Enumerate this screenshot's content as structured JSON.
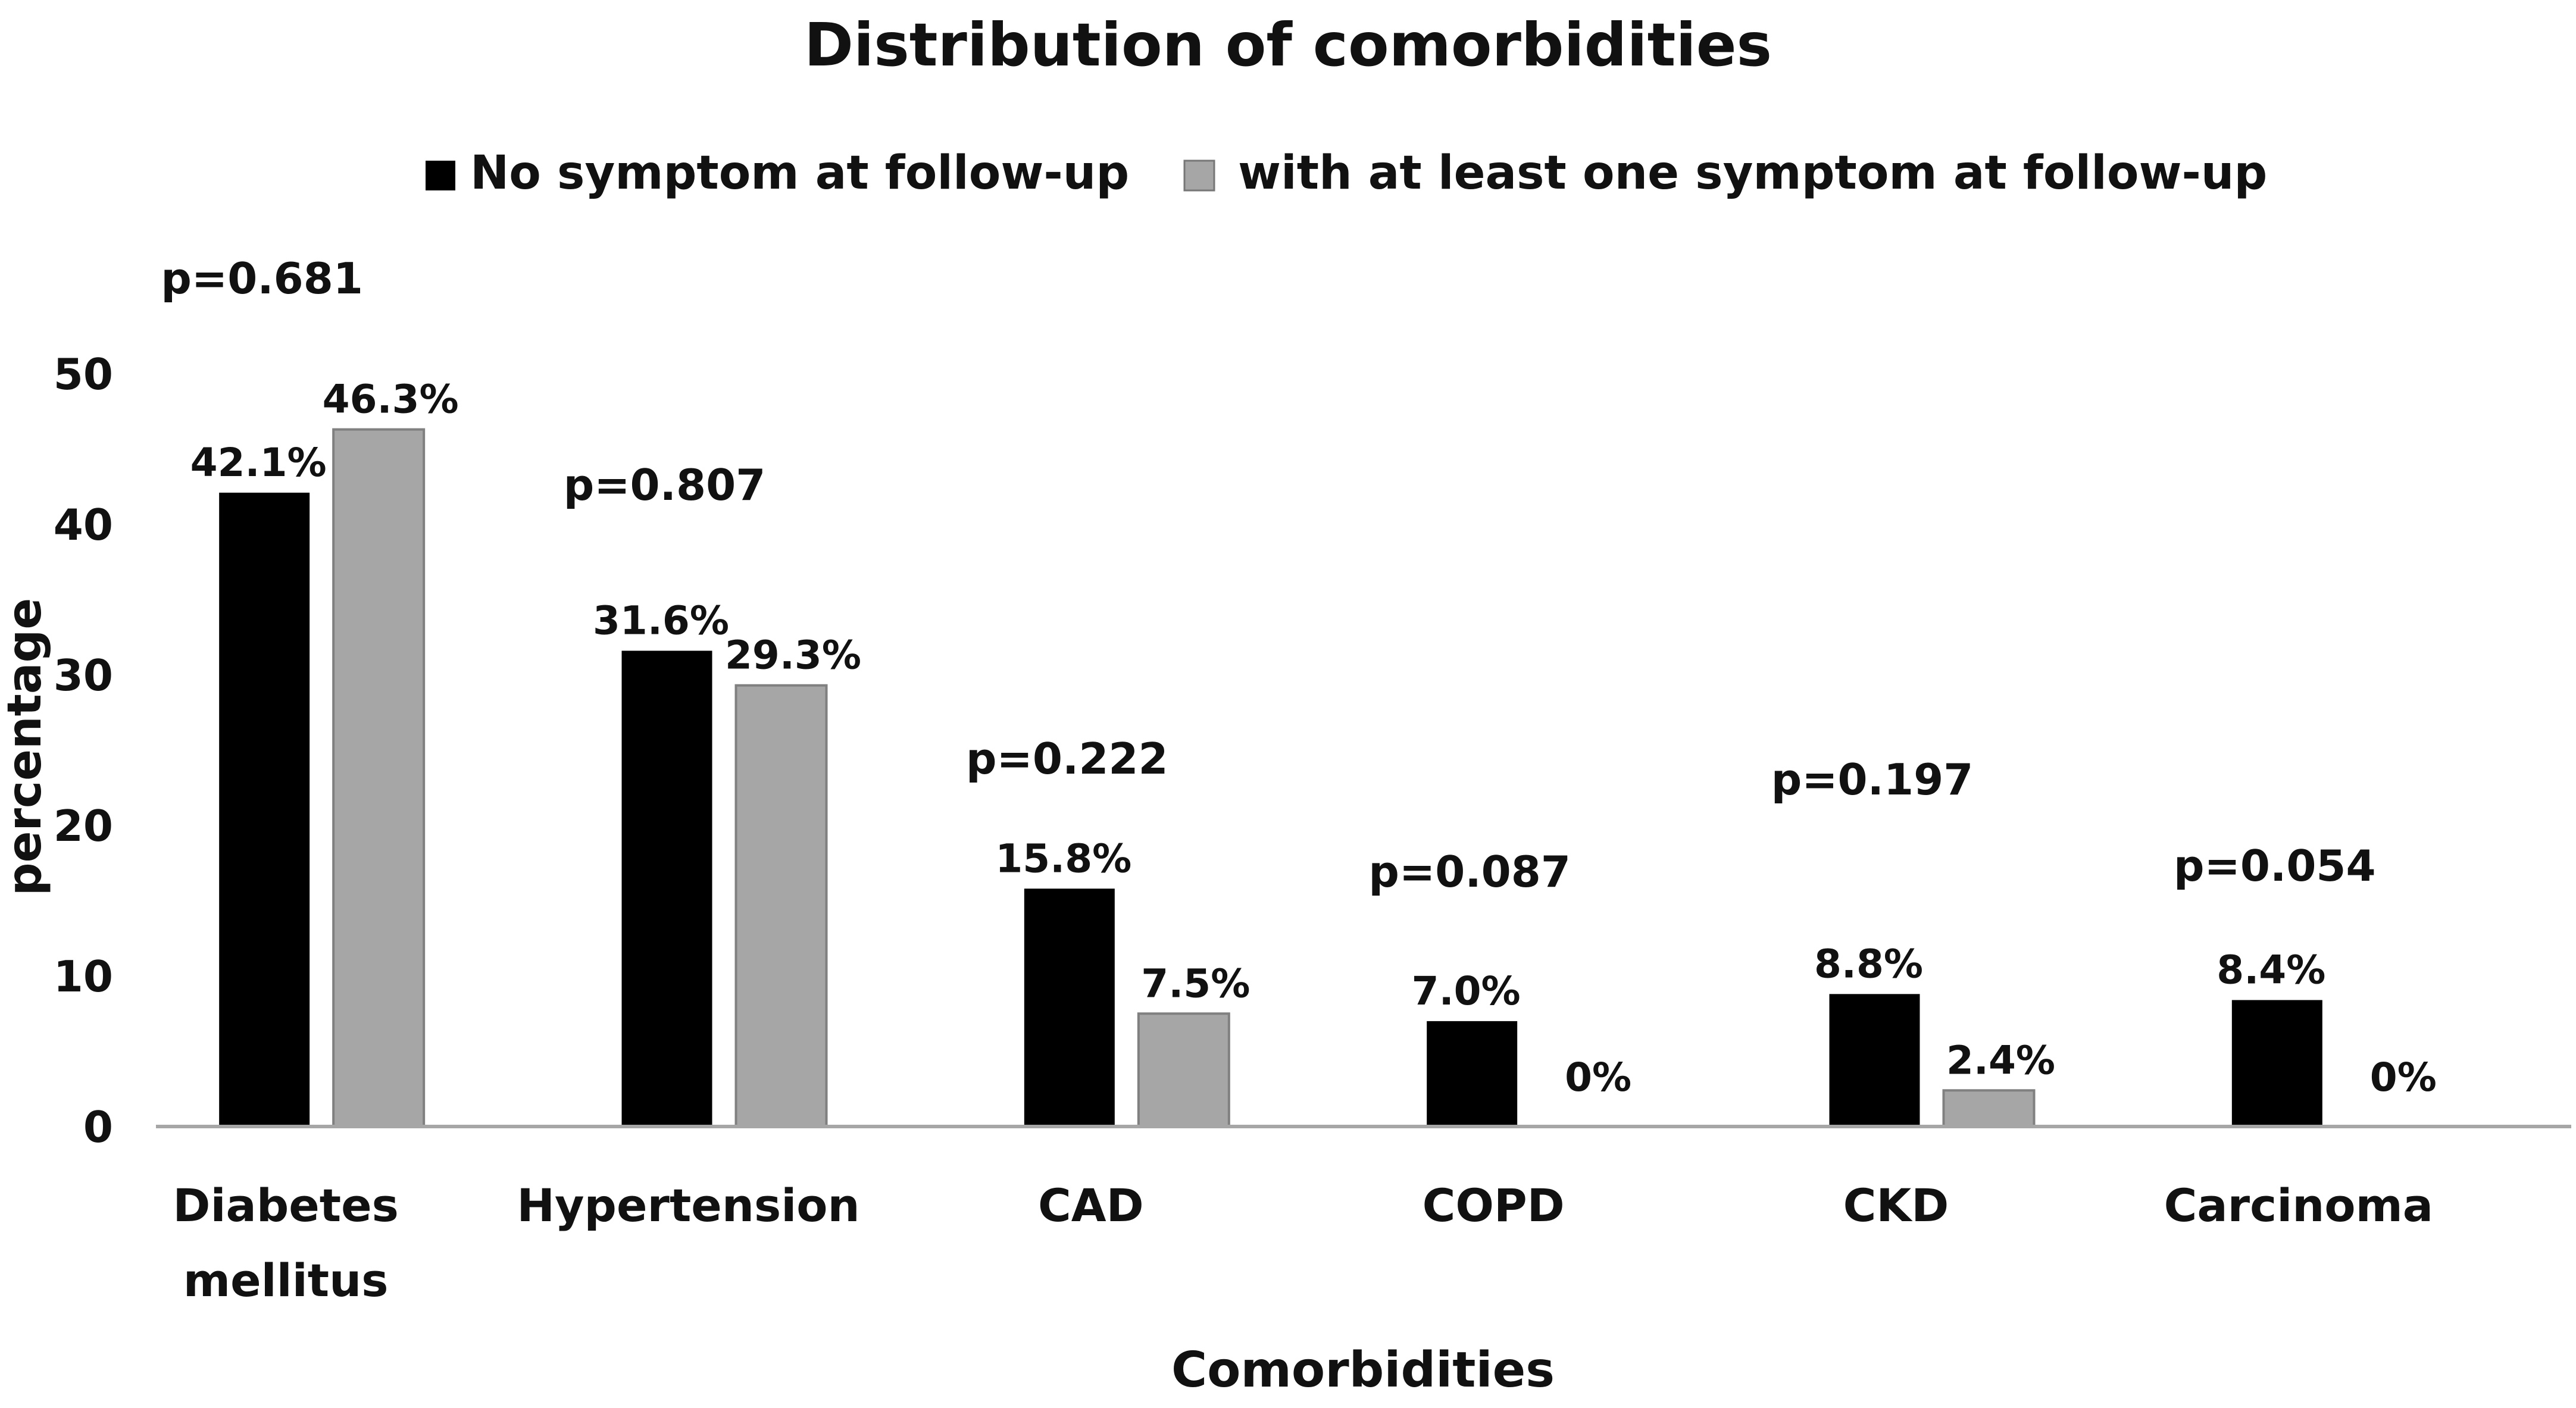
{
  "chart_data": {
    "type": "bar",
    "title": "Distribution of comorbidities",
    "xlabel": "Comorbidities",
    "ylabel": "percentage",
    "ylim": [
      0,
      50
    ],
    "yticks": [
      0,
      10,
      20,
      30,
      40,
      50
    ],
    "grid": false,
    "legend_position": "top",
    "categories": [
      [
        "Diabetes",
        "mellitus"
      ],
      [
        "Hypertension"
      ],
      [
        "CAD"
      ],
      [
        "COPD"
      ],
      [
        "CKD"
      ],
      [
        "Carcinoma"
      ]
    ],
    "series": [
      {
        "name": "No symptom at follow-up",
        "color": "#000000",
        "values": [
          42.1,
          31.6,
          15.8,
          7.0,
          8.8,
          8.4
        ],
        "labels": [
          "42.1%",
          "31.6%",
          "15.8%",
          "7.0%",
          "8.8%",
          "8.4%"
        ]
      },
      {
        "name": "with at least one symptom at follow-up",
        "color": "#a6a6a6",
        "values": [
          46.3,
          29.3,
          7.5,
          0,
          2.4,
          0
        ],
        "labels": [
          "46.3%",
          "29.3%",
          "7.5%",
          "0%",
          "2.4%",
          "0%"
        ]
      }
    ],
    "annotations": [
      "p=0.681",
      "p=0.807",
      "p=0.222",
      "p=0.087",
      "p=0.197",
      "p=0.054"
    ]
  }
}
